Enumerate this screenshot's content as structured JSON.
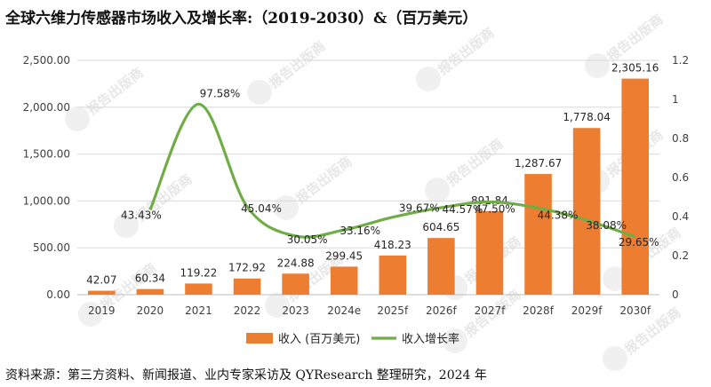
{
  "title": "全球六维力传感器市场收入及增长率:（2019-2030）&（百万美元）",
  "source": "资料来源：第三方资料、新闻报道、业内专家采访及 QYResearch 整理研究，2024 年",
  "watermark": "报告出版商",
  "chart_data": {
    "type": "bar+line",
    "categories": [
      "2019",
      "2020",
      "2021",
      "2022",
      "2023",
      "2024e",
      "2025f",
      "2026f",
      "2027f",
      "2028f",
      "2029f",
      "2030f"
    ],
    "series": [
      {
        "name": "收入 (百万美元)",
        "type": "bar",
        "axis": "left",
        "values": [
          42.07,
          60.34,
          119.22,
          172.92,
          224.88,
          299.45,
          418.23,
          604.65,
          891.84,
          1287.67,
          1778.04,
          2305.16
        ],
        "labels": [
          "42.07",
          "60.34",
          "119.22",
          "172.92",
          "224.88",
          "299.45",
          "418.23",
          "604.65",
          "891.84",
          "1,287.67",
          "1,778.04",
          "2,305.16"
        ],
        "color": "#ed7d31"
      },
      {
        "name": "收入增长率",
        "type": "line",
        "axis": "right",
        "values": [
          null,
          0.4343,
          0.9758,
          0.4504,
          0.3005,
          0.3316,
          0.3967,
          0.4457,
          0.475,
          0.4438,
          0.3808,
          0.2965
        ],
        "labels": [
          null,
          "43.43%",
          "97.58%",
          "45.04%",
          "30.05%",
          "33.16%",
          "39.67%",
          "44.57%",
          "47.50%",
          "44.38%",
          "38.08%",
          "29.65%"
        ],
        "color": "#70ad47"
      }
    ],
    "left_axis": {
      "min": 0,
      "max": 2500,
      "ticks": [
        "0.00",
        "500.00",
        "1,000.00",
        "1,500.00",
        "2,000.00",
        "2,500.00"
      ]
    },
    "right_axis": {
      "min": 0,
      "max": 1.2,
      "ticks": [
        "0",
        "0.2",
        "0.4",
        "0.6",
        "0.8",
        "1",
        "1.2"
      ]
    },
    "grid": true,
    "legend_position": "bottom"
  }
}
